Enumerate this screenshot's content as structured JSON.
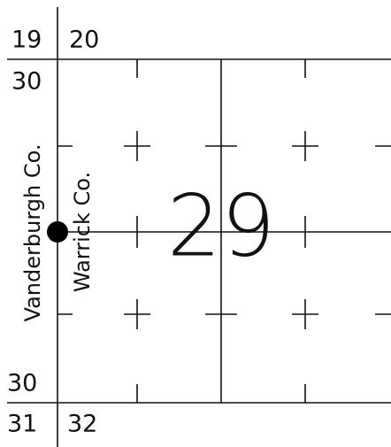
{
  "map": {
    "section": "29",
    "corners": {
      "top_left_above": "19",
      "top_right_above": "20",
      "top_left_below": "30",
      "bottom_left_above": "30",
      "bottom_left_below": "31",
      "bottom_right_below": "32"
    },
    "counties": {
      "west": "Vanderburgh Co.",
      "east": "Warrick Co."
    }
  }
}
